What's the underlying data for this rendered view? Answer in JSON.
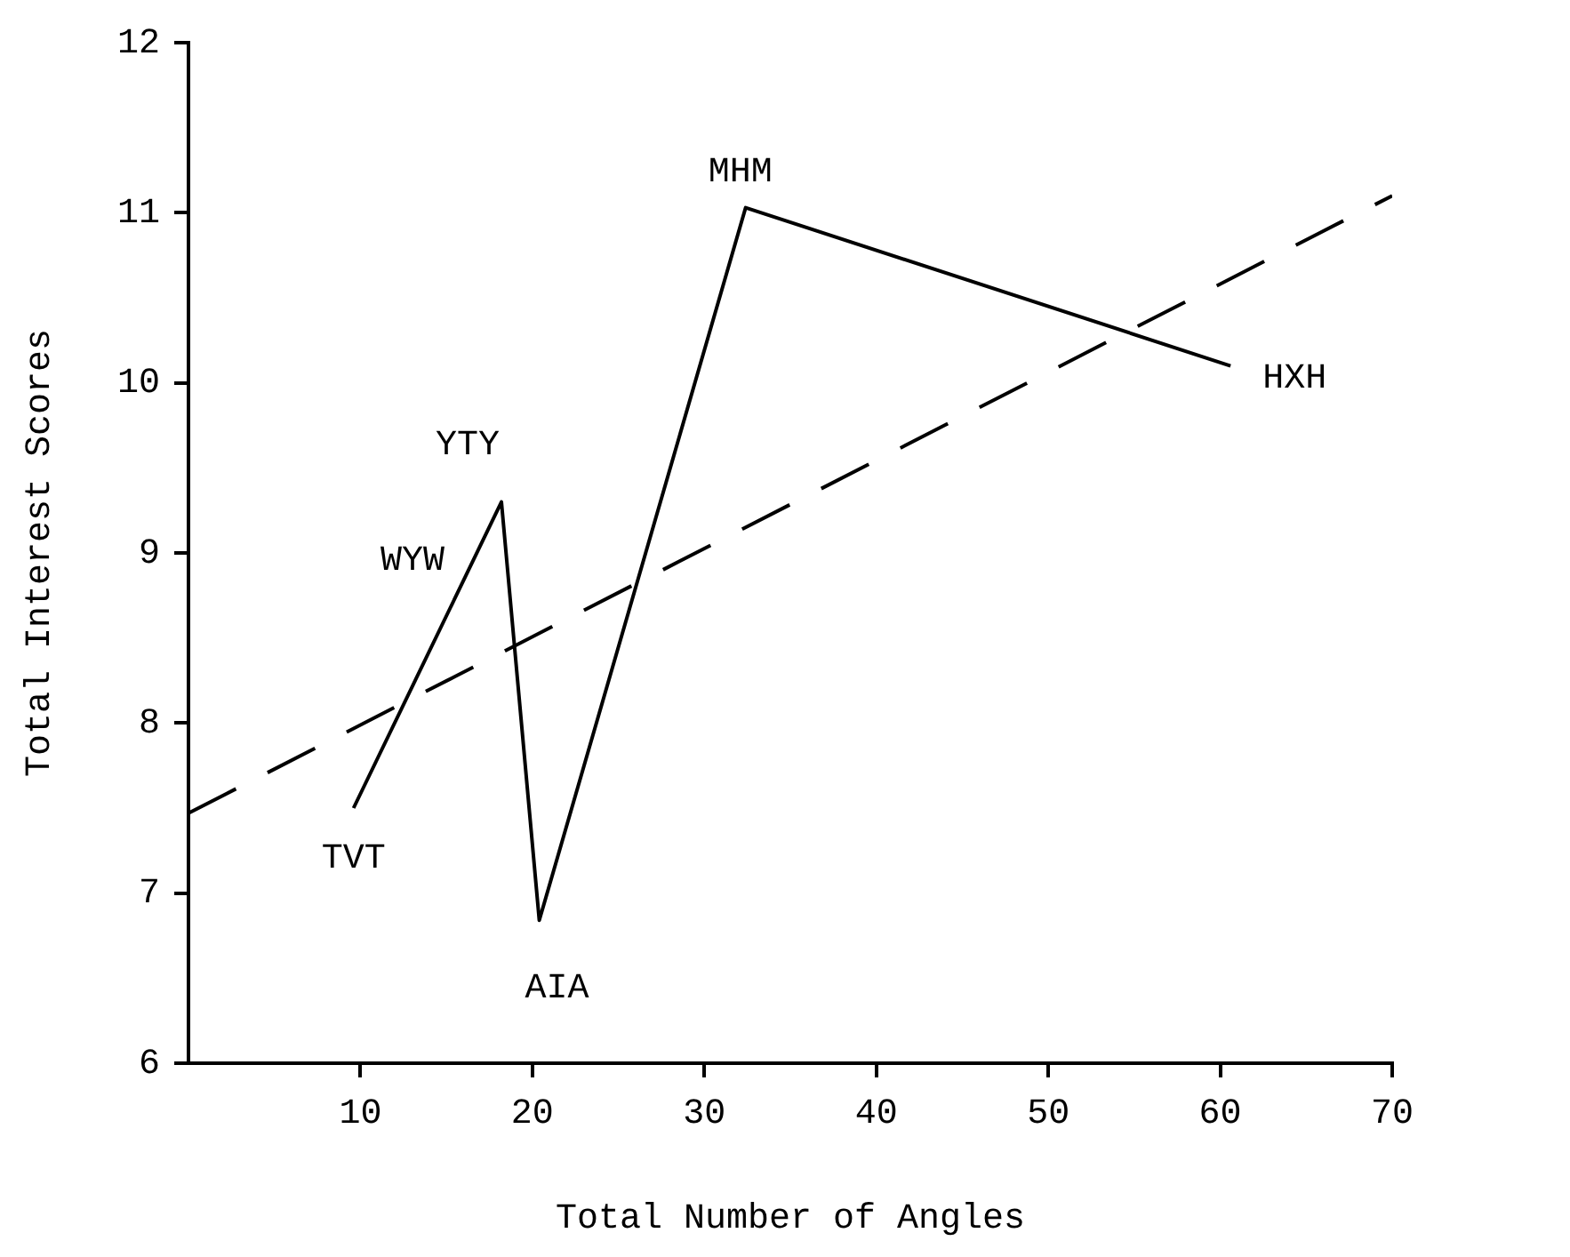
{
  "chart_data": {
    "type": "line",
    "xlabel": "Total Number of Angles",
    "ylabel": "Total Interest Scores",
    "xlim": [
      0,
      70
    ],
    "xticks": [
      10,
      20,
      30,
      40,
      50,
      60,
      70
    ],
    "ylim": [
      6,
      12
    ],
    "yticks": [
      6,
      7,
      8,
      9,
      10,
      11,
      12
    ],
    "series": [
      {
        "color": "#000000",
        "x": [
          9.6,
          18.2,
          20.4,
          32.4,
          60.6
        ],
        "values": [
          7.5,
          9.3,
          6.84,
          11.03,
          10.1
        ],
        "line_style": "solid"
      },
      {
        "type": "line",
        "color": "#000000",
        "x": [
          0,
          70
        ],
        "values": [
          7.47,
          11.1
        ],
        "line_style": "dashed"
      }
    ],
    "annotations": [
      {
        "text": "TVT",
        "x": 9.6,
        "y": 7.5
      },
      "WYW",
      {
        "text": "YTY",
        "x": 18.2,
        "y": 9.3
      },
      {
        "text": "AIA",
        "x": 20.4,
        "y": 6.84
      },
      {
        "text": "MHM",
        "x": 32.4,
        "y": 11.03
      },
      {
        "text": "HXH",
        "x": 60.6,
        "y": 10.1
      }
    ],
    "grid": false,
    "legend": false,
    "marker": "none"
  }
}
